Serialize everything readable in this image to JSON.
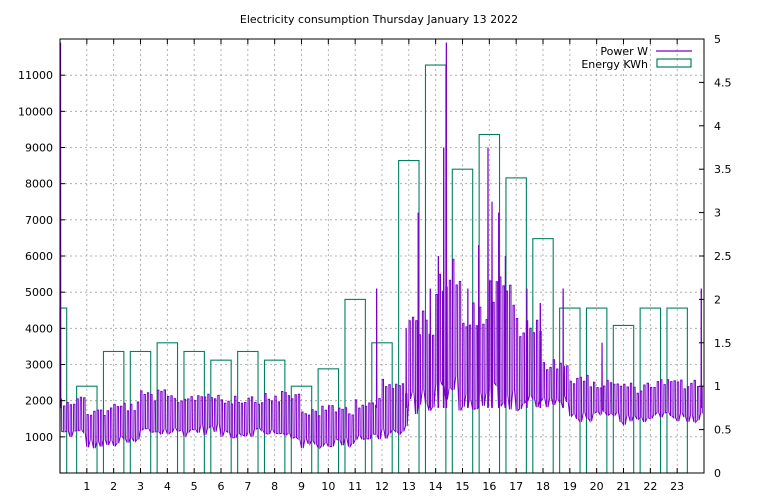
{
  "chart_data": {
    "type": "line",
    "title": "Electricity consumption Thursday January 13 2022",
    "x_ticks": [
      "1",
      "2",
      "3",
      "4",
      "5",
      "6",
      "7",
      "8",
      "9",
      "10",
      "11",
      "12",
      "13",
      "14",
      "15",
      "16",
      "17",
      "18",
      "19",
      "20",
      "21",
      "22",
      "23"
    ],
    "y_left_ticks": [
      "1000",
      "2000",
      "3000",
      "4000",
      "5000",
      "6000",
      "7000",
      "8000",
      "9000",
      "10000",
      "11000"
    ],
    "y_right_ticks": [
      "0",
      "0.5",
      "1",
      "1.5",
      "2",
      "2.5",
      "3",
      "3.5",
      "4",
      "4.5",
      "5"
    ],
    "xlim": [
      0,
      24
    ],
    "ylim_left": [
      0,
      12000
    ],
    "ylim_right": [
      0,
      5
    ],
    "grid": true,
    "legend_position": "top-right",
    "colors": {
      "power": "#7b00c8",
      "energy": "#008060",
      "grid": "#a0a0a0"
    },
    "energy_series": {
      "name": "Energy KWh",
      "hours": [
        0,
        1,
        2,
        3,
        4,
        5,
        6,
        7,
        8,
        9,
        10,
        11,
        12,
        13,
        14,
        15,
        16,
        17,
        18,
        19,
        20,
        21,
        22,
        23
      ],
      "values": [
        1.9,
        1.0,
        1.4,
        1.4,
        1.5,
        1.4,
        1.3,
        1.4,
        1.3,
        1.0,
        1.2,
        2.0,
        1.5,
        3.6,
        4.7,
        3.5,
        3.9,
        3.4,
        2.7,
        1.9,
        1.9,
        1.7,
        1.9,
        1.9
      ]
    },
    "power_series": {
      "name": "Power W",
      "hour_profiles": [
        {
          "hour": 0,
          "low": 950,
          "high": 2150
        },
        {
          "hour": 1,
          "low": 650,
          "high": 1850
        },
        {
          "hour": 2,
          "low": 700,
          "high": 2000
        },
        {
          "hour": 3,
          "low": 1000,
          "high": 2300
        },
        {
          "hour": 4,
          "low": 1000,
          "high": 2200
        },
        {
          "hour": 5,
          "low": 1050,
          "high": 2300
        },
        {
          "hour": 6,
          "low": 950,
          "high": 2200
        },
        {
          "hour": 7,
          "low": 1000,
          "high": 2200
        },
        {
          "hour": 8,
          "low": 850,
          "high": 2300
        },
        {
          "hour": 9,
          "low": 650,
          "high": 1850
        },
        {
          "hour": 10,
          "low": 700,
          "high": 1900
        },
        {
          "hour": 11,
          "low": 850,
          "high": 2100
        },
        {
          "hour": 12,
          "low": 900,
          "high": 2600
        },
        {
          "hour": 13,
          "low": 1600,
          "high": 4500
        },
        {
          "hour": 14,
          "low": 1700,
          "high": 6000
        },
        {
          "hour": 15,
          "low": 1600,
          "high": 4800
        },
        {
          "hour": 16,
          "low": 1700,
          "high": 5500
        },
        {
          "hour": 17,
          "low": 1600,
          "high": 4300
        },
        {
          "hour": 18,
          "low": 1800,
          "high": 3200
        },
        {
          "hour": 19,
          "low": 1400,
          "high": 2700
        },
        {
          "hour": 20,
          "low": 1400,
          "high": 2600
        },
        {
          "hour": 21,
          "low": 1300,
          "high": 2500
        },
        {
          "hour": 22,
          "low": 1500,
          "high": 2600
        },
        {
          "hour": 23,
          "low": 1400,
          "high": 2600
        }
      ],
      "spikes": [
        {
          "x": 0.02,
          "y": 11900
        },
        {
          "x": 11.8,
          "y": 5100
        },
        {
          "x": 12.9,
          "y": 4000
        },
        {
          "x": 13.35,
          "y": 7200
        },
        {
          "x": 13.8,
          "y": 5100
        },
        {
          "x": 14.1,
          "y": 6000
        },
        {
          "x": 14.3,
          "y": 9000
        },
        {
          "x": 14.4,
          "y": 11900
        },
        {
          "x": 15.2,
          "y": 5100
        },
        {
          "x": 15.6,
          "y": 6300
        },
        {
          "x": 15.95,
          "y": 9000
        },
        {
          "x": 16.1,
          "y": 7500
        },
        {
          "x": 16.35,
          "y": 7200
        },
        {
          "x": 16.6,
          "y": 6000
        },
        {
          "x": 17.4,
          "y": 5100
        },
        {
          "x": 17.9,
          "y": 4700
        },
        {
          "x": 18.75,
          "y": 5100
        },
        {
          "x": 20.2,
          "y": 3600
        },
        {
          "x": 23.9,
          "y": 5100
        }
      ]
    }
  },
  "legend": {
    "power_label": "Power W",
    "energy_label": "Energy KWh"
  }
}
